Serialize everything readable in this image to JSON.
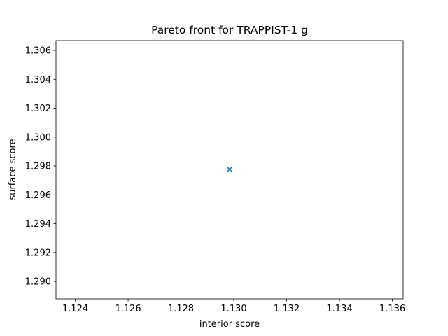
{
  "chart_data": {
    "type": "scatter",
    "title": "Pareto front for TRAPPIST-1 g",
    "xlabel": "interior score",
    "ylabel": "surface score",
    "series": [
      {
        "color": "#1f77b4",
        "marker": "x",
        "x": [
          1.12984
        ],
        "values": [
          1.29776
        ]
      }
    ],
    "xlim": [
      1.12327,
      1.13641
    ],
    "xticks": [
      1.124,
      1.126,
      1.128,
      {
        "value": 1.13,
        "label": "1.130"
      },
      1.132,
      1.134,
      1.136
    ],
    "ylim": [
      1.28879,
      1.30668
    ],
    "yticks": [
      {
        "value": 1.29,
        "label": "1.290"
      },
      1.292,
      1.294,
      1.296,
      1.298,
      {
        "value": 1.3,
        "label": "1.300"
      },
      1.302,
      1.304,
      1.306
    ],
    "grid": false
  }
}
